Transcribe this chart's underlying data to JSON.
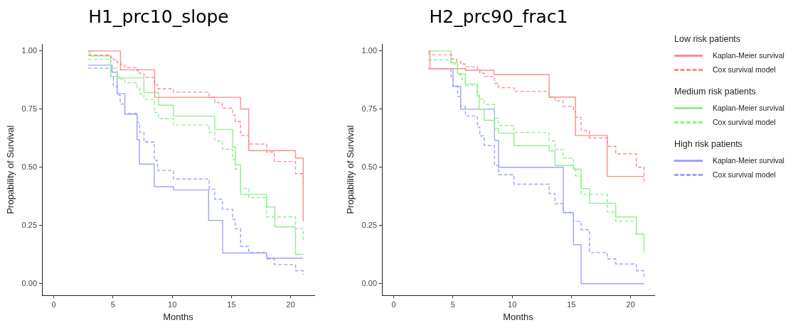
{
  "chart_data": [
    {
      "type": "step",
      "title": "H1_prc10_slope",
      "xlabel": "Months",
      "ylabel": "Propability of Survival",
      "xlim": [
        -1,
        22
      ],
      "xticks": [
        0,
        5,
        10,
        15,
        20
      ],
      "ylim": [
        -0.05,
        1.03
      ],
      "yticks": [
        {
          "value": 0,
          "label": "0.00"
        },
        {
          "value": 0.25,
          "label": "0.25"
        },
        {
          "value": 0.5,
          "label": "0.50"
        },
        {
          "value": 0.75,
          "label": "0.75"
        },
        {
          "value": 1,
          "label": "1.00"
        }
      ],
      "grid": false,
      "legend": false,
      "marker": "none",
      "series": [
        {
          "color": "#ff8c8c",
          "line_style": "solid",
          "x": [
            2.9,
            3.0,
            5.63,
            8.52,
            15.77,
            16.46,
            20.41,
            21.06,
            21.06
          ],
          "values": [
            1.0,
            1.0,
            0.919,
            0.801,
            0.751,
            0.572,
            0.54,
            0.54,
            0.268
          ]
        },
        {
          "color": "#ff8c8c",
          "line_style": "dashed",
          "x": [
            2.9,
            4.81,
            5.03,
            5.35,
            5.67,
            6.0,
            7.03,
            7.25,
            7.61,
            8.48,
            8.76,
            10.1,
            13.12,
            13.59,
            14.24,
            15.1,
            15.32,
            15.77,
            16.46,
            17.97,
            18.62,
            20.41,
            21.06
          ],
          "values": [
            0.982,
            0.972,
            0.963,
            0.95,
            0.939,
            0.929,
            0.915,
            0.903,
            0.886,
            0.855,
            0.838,
            0.823,
            0.802,
            0.778,
            0.754,
            0.724,
            0.697,
            0.637,
            0.6,
            0.566,
            0.525,
            0.473,
            0.42
          ]
        },
        {
          "color": "#90ee90",
          "line_style": "solid",
          "x": [
            2.9,
            3.04,
            4.81,
            5.35,
            7.61,
            8.85,
            10.1,
            13.59,
            15.1,
            15.32,
            15.77,
            17.97,
            18.66,
            20.41,
            21.06
          ],
          "values": [
            1.0,
            0.979,
            0.89,
            0.884,
            0.821,
            0.767,
            0.72,
            0.663,
            0.587,
            0.511,
            0.384,
            0.33,
            0.244,
            0.126,
            0.126
          ]
        },
        {
          "color": "#90ee90",
          "line_style": "dashed",
          "x": [
            2.9,
            4.81,
            5.35,
            5.67,
            6.0,
            7.03,
            7.25,
            7.61,
            8.48,
            8.85,
            10.1,
            13.12,
            13.59,
            14.24,
            15.1,
            15.32,
            15.77,
            16.46,
            17.97,
            20.41,
            21.06
          ],
          "values": [
            0.964,
            0.926,
            0.89,
            0.88,
            0.864,
            0.84,
            0.816,
            0.791,
            0.736,
            0.709,
            0.682,
            0.65,
            0.614,
            0.578,
            0.535,
            0.492,
            0.41,
            0.37,
            0.287,
            0.237,
            0.187
          ]
        },
        {
          "color": "#a0a0ff",
          "line_style": "solid",
          "x": [
            2.9,
            4.92,
            5.35,
            6.0,
            7.03,
            7.23,
            8.48,
            10.1,
            13.07,
            14.26,
            17.97,
            21.06
          ],
          "values": [
            0.939,
            0.909,
            0.817,
            0.728,
            0.619,
            0.514,
            0.417,
            0.403,
            0.272,
            0.132,
            0.11,
            0.11
          ]
        },
        {
          "color": "#a0a0ff",
          "line_style": "dashed",
          "x": [
            2.9,
            4.81,
            5.03,
            5.35,
            5.61,
            6.0,
            7.03,
            7.25,
            7.61,
            8.48,
            8.76,
            10.1,
            13.12,
            13.59,
            14.24,
            15.1,
            15.32,
            15.77,
            16.46,
            17.97,
            18.62,
            20.41,
            21.06
          ],
          "values": [
            0.926,
            0.888,
            0.848,
            0.81,
            0.772,
            0.731,
            0.692,
            0.651,
            0.609,
            0.53,
            0.487,
            0.45,
            0.406,
            0.363,
            0.32,
            0.277,
            0.237,
            0.161,
            0.134,
            0.107,
            0.082,
            0.056,
            0.039
          ]
        }
      ]
    },
    {
      "type": "step",
      "title": "H2_prc90_frac1",
      "xlabel": "Months",
      "ylabel": "Propability of Survival",
      "xlim": [
        -1,
        22
      ],
      "xticks": [
        0,
        5,
        10,
        15,
        20
      ],
      "ylim": [
        -0.05,
        1.03
      ],
      "yticks": [
        {
          "value": 0,
          "label": "0.00"
        },
        {
          "value": 0.25,
          "label": "0.25"
        },
        {
          "value": 0.5,
          "label": "0.50"
        },
        {
          "value": 0.75,
          "label": "0.75"
        },
        {
          "value": 1,
          "label": "1.00"
        }
      ],
      "grid": false,
      "legend": "right",
      "marker": "none",
      "annotations": [
        "Low risk patients",
        "Medium risk patients",
        "High risk patients"
      ],
      "series": [
        {
          "name": "Kaplan-Meier survival",
          "color": "#ff8c8c",
          "line_style": "solid",
          "x": [
            2.9,
            3.05,
            6.04,
            8.46,
            13.12,
            15.35,
            18.03,
            21.13
          ],
          "values": [
            1.0,
            0.924,
            0.917,
            0.898,
            0.802,
            0.637,
            0.461,
            0.461
          ]
        },
        {
          "name": "Cox survival model",
          "color": "#ff8c8c",
          "line_style": "dashed",
          "x": [
            2.9,
            3.05,
            4.89,
            5.32,
            5.65,
            6.04,
            7.06,
            7.27,
            7.64,
            8.51,
            8.85,
            10.15,
            13.12,
            13.61,
            14.31,
            15.17,
            15.35,
            15.82,
            16.52,
            18.03,
            18.74,
            20.48,
            21.13
          ],
          "values": [
            0.991,
            0.984,
            0.965,
            0.955,
            0.944,
            0.932,
            0.917,
            0.905,
            0.89,
            0.861,
            0.842,
            0.826,
            0.802,
            0.785,
            0.762,
            0.74,
            0.715,
            0.658,
            0.626,
            0.59,
            0.558,
            0.501,
            0.43
          ]
        },
        {
          "name": "Kaplan-Meier survival",
          "color": "#90ee90",
          "line_style": "solid",
          "x": [
            2.9,
            4.83,
            5.39,
            6.04,
            7.06,
            7.21,
            7.64,
            8.51,
            8.85,
            10.15,
            13.12,
            13.61,
            15.17,
            15.82,
            16.52,
            18.74,
            20.48,
            21.13
          ],
          "values": [
            1.0,
            0.95,
            0.903,
            0.858,
            0.806,
            0.75,
            0.702,
            0.667,
            0.647,
            0.593,
            0.571,
            0.508,
            0.492,
            0.409,
            0.346,
            0.287,
            0.213,
            0.134
          ]
        },
        {
          "name": "Cox survival model",
          "color": "#90ee90",
          "line_style": "dashed",
          "x": [
            2.9,
            4.83,
            5.39,
            5.76,
            6.04,
            7.06,
            7.21,
            7.64,
            8.51,
            8.85,
            10.15,
            13.12,
            13.61,
            14.31,
            15.17,
            15.35,
            15.82,
            18.03,
            18.74,
            20.48,
            21.13
          ],
          "values": [
            0.962,
            0.944,
            0.898,
            0.877,
            0.852,
            0.823,
            0.794,
            0.771,
            0.711,
            0.68,
            0.65,
            0.614,
            0.577,
            0.54,
            0.501,
            0.463,
            0.384,
            0.308,
            0.268,
            0.213,
            0.213
          ]
        },
        {
          "name": "Kaplan-Meier survival",
          "color": "#a0a0ff",
          "line_style": "solid",
          "x": [
            3.05,
            5.0,
            5.65,
            8.51,
            8.85,
            14.31,
            15.17,
            15.82,
            21.13
          ],
          "values": [
            0.924,
            0.848,
            0.75,
            0.616,
            0.5,
            0.306,
            0.168,
            0.0,
            0.0
          ]
        },
        {
          "name": "Cox survival model",
          "color": "#a0a0ff",
          "line_style": "dashed",
          "x": [
            2.9,
            3.05,
            4.83,
            5.0,
            5.39,
            5.65,
            6.04,
            7.06,
            7.27,
            7.64,
            8.51,
            8.85,
            10.15,
            13.12,
            13.61,
            14.31,
            15.17,
            15.82,
            16.52,
            18.03,
            18.74,
            20.48,
            21.13
          ],
          "values": [
            0.924,
            0.924,
            0.89,
            0.85,
            0.804,
            0.762,
            0.721,
            0.673,
            0.635,
            0.594,
            0.508,
            0.468,
            0.428,
            0.387,
            0.344,
            0.306,
            0.268,
            0.232,
            0.134,
            0.107,
            0.085,
            0.056,
            0.029
          ]
        }
      ]
    }
  ]
}
